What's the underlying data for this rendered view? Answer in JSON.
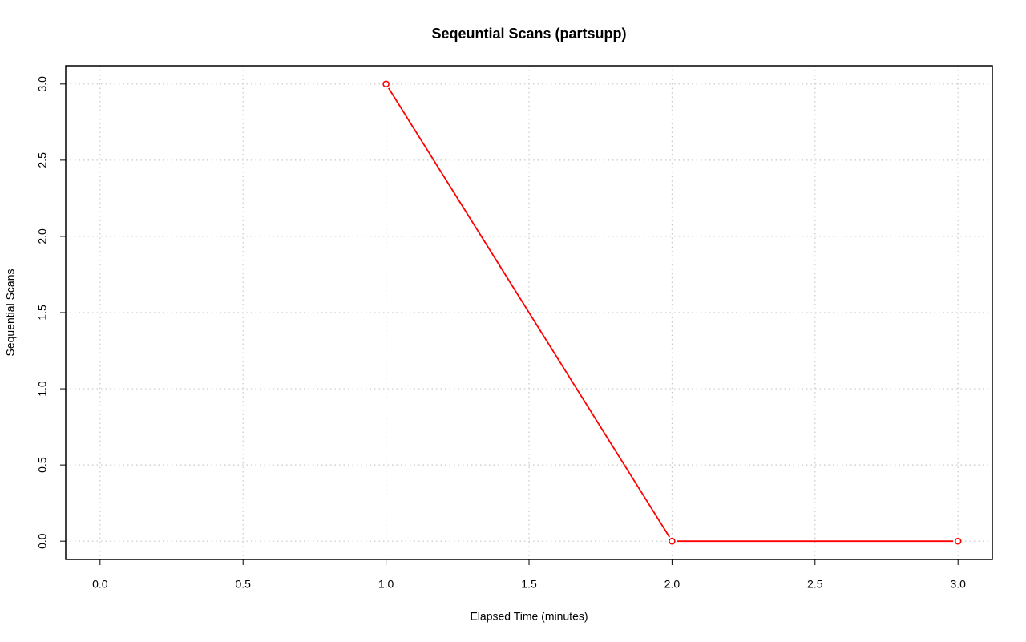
{
  "chart_data": {
    "type": "line",
    "title": "Seqeuntial Scans (partsupp)",
    "x_label": "Elapsed Time (minutes)",
    "y_label": "Sequential Scans",
    "x": [
      1,
      2,
      3
    ],
    "series": [
      {
        "name": "partsupp",
        "color": "#ff0000",
        "values": [
          3,
          0,
          0
        ]
      }
    ],
    "xlim": [
      -0.12,
      3.12
    ],
    "xticks": [
      {
        "value": 0,
        "label": "0.0"
      },
      0.5,
      {
        "value": 1,
        "label": "1.0"
      },
      1.5,
      {
        "value": 2,
        "label": "2.0"
      },
      2.5,
      {
        "value": 3,
        "label": "3.0"
      }
    ],
    "ylim": [
      -0.12,
      3.12
    ],
    "yticks": [
      {
        "value": 0,
        "label": "0.0"
      },
      0.5,
      {
        "value": 1,
        "label": "1.0"
      },
      1.5,
      {
        "value": 2,
        "label": "2.0"
      },
      2.5,
      {
        "value": 3,
        "label": "3.0"
      }
    ],
    "grid": true
  }
}
